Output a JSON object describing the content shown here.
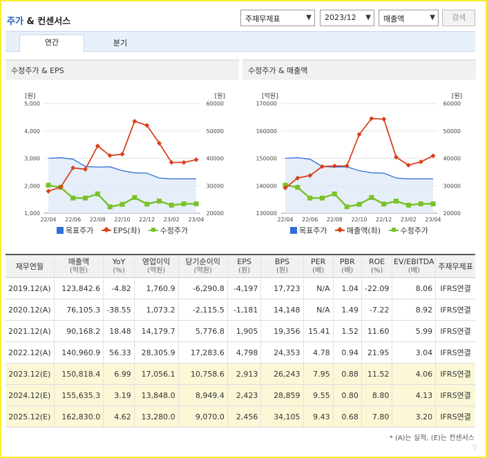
{
  "header": {
    "title_a": "주가",
    "title_b": " & 컨센서스",
    "select_type": "주재무제표",
    "select_period": "2023/12",
    "select_metric": "매출액",
    "search_label": "검색"
  },
  "tabs": [
    "연간",
    "분기"
  ],
  "colors": {
    "target": "#2f6fd6",
    "series": "#d9401a",
    "price": "#7ac22a"
  },
  "chart_left": {
    "title": "수정주가 & EPS",
    "left_unit": "[원]",
    "right_unit": "[원]",
    "left_ticks": [
      "5,000",
      "4,000",
      "3,000",
      "2,000",
      "1,000"
    ],
    "right_ticks": [
      "60000",
      "50000",
      "40000",
      "30000",
      "20000"
    ],
    "x_ticks": [
      "22/04",
      "22/06",
      "22/08",
      "22/10",
      "22/12",
      "23/02",
      "23/04"
    ],
    "legend": [
      "목표주가",
      "EPS(좌)",
      "수정주가"
    ]
  },
  "chart_right": {
    "title": "수정주가 & 매출액",
    "left_unit": "[억원]",
    "right_unit": "[원]",
    "left_ticks": [
      "170000",
      "160000",
      "150000",
      "140000",
      "130000"
    ],
    "right_ticks": [
      "60000",
      "50000",
      "40000",
      "30000",
      "20000"
    ],
    "x_ticks": [
      "22/04",
      "22/06",
      "22/08",
      "22/10",
      "22/12",
      "23/02",
      "23/04"
    ],
    "legend": [
      "목표주가",
      "매출액(좌)",
      "수정주가"
    ]
  },
  "chart_data": [
    {
      "type": "line",
      "title": "수정주가 & EPS",
      "ylabel_left": "[원]",
      "ylabel_right": "[원]",
      "ylim_left": [
        1000,
        5000
      ],
      "ylim_right": [
        20000,
        60000
      ],
      "x": [
        "22/04",
        "22/05",
        "22/06",
        "22/07",
        "22/08",
        "22/09",
        "22/10",
        "22/11",
        "22/12",
        "23/01",
        "23/02",
        "23/03",
        "23/04"
      ],
      "series": [
        {
          "name": "목표주가",
          "axis": "right",
          "values": [
            40000,
            40200,
            39700,
            37000,
            36800,
            36900,
            35500,
            34700,
            34600,
            32800,
            32500,
            32500,
            32500
          ]
        },
        {
          "name": "EPS(좌)",
          "axis": "left",
          "values": [
            1800,
            1950,
            2650,
            2600,
            3450,
            3100,
            3150,
            4350,
            4200,
            3550,
            2850,
            2850,
            2950
          ]
        },
        {
          "name": "수정주가",
          "axis": "right",
          "values": [
            30200,
            29400,
            25500,
            25500,
            27000,
            22300,
            23200,
            25700,
            23300,
            24400,
            22900,
            23400,
            23400
          ]
        }
      ]
    },
    {
      "type": "line",
      "title": "수정주가 & 매출액",
      "ylabel_left": "[억원]",
      "ylabel_right": "[원]",
      "ylim_left": [
        130000,
        170000
      ],
      "ylim_right": [
        20000,
        60000
      ],
      "x": [
        "22/04",
        "22/05",
        "22/06",
        "22/07",
        "22/08",
        "22/09",
        "22/10",
        "22/11",
        "22/12",
        "23/01",
        "23/02",
        "23/03",
        "23/04"
      ],
      "series": [
        {
          "name": "목표주가",
          "axis": "right",
          "values": [
            40000,
            40200,
            39700,
            37000,
            36800,
            36900,
            35500,
            34700,
            34600,
            32800,
            32500,
            32500,
            32500
          ]
        },
        {
          "name": "매출액(좌)",
          "axis": "left",
          "values": [
            139200,
            142800,
            143700,
            147000,
            147200,
            147200,
            158700,
            164500,
            164300,
            150400,
            147500,
            148700,
            150900
          ]
        },
        {
          "name": "수정주가",
          "axis": "right",
          "values": [
            30200,
            29400,
            25500,
            25500,
            27000,
            22300,
            23200,
            25700,
            23300,
            24400,
            22900,
            23400,
            23400
          ]
        }
      ]
    }
  ],
  "table": {
    "columns": [
      {
        "label": "재무연월",
        "sub": ""
      },
      {
        "label": "매출액",
        "sub": "(억원)"
      },
      {
        "label": "YoY",
        "sub": "(%)"
      },
      {
        "label": "영업이익",
        "sub": "(억원)"
      },
      {
        "label": "당기순이익",
        "sub": "(억원)"
      },
      {
        "label": "EPS",
        "sub": "(원)"
      },
      {
        "label": "BPS",
        "sub": "(원)"
      },
      {
        "label": "PER",
        "sub": "(배)"
      },
      {
        "label": "PBR",
        "sub": "(배)"
      },
      {
        "label": "ROE",
        "sub": "(%)"
      },
      {
        "label": "EV/EBITDA",
        "sub": "(배)"
      },
      {
        "label": "주재무제표",
        "sub": ""
      }
    ],
    "rows": [
      {
        "est": false,
        "cells": [
          "2019.12(A)",
          "123,842.6",
          "-4.82",
          "1,760.9",
          "-6,290.8",
          "-4,197",
          "17,723",
          "N/A",
          "1.04",
          "-22.09",
          "8.06",
          "IFRS연결"
        ]
      },
      {
        "est": false,
        "cells": [
          "2020.12(A)",
          "76,105.3",
          "-38.55",
          "1,073.2",
          "-2,115.5",
          "-1,181",
          "14,148",
          "N/A",
          "1.49",
          "-7.22",
          "8.92",
          "IFRS연결"
        ]
      },
      {
        "est": false,
        "cells": [
          "2021.12(A)",
          "90,168.2",
          "18.48",
          "14,179.7",
          "5,776.8",
          "1,905",
          "19,356",
          "15.41",
          "1.52",
          "11.60",
          "5.99",
          "IFRS연결"
        ]
      },
      {
        "est": false,
        "cells": [
          "2022.12(A)",
          "140,960.9",
          "56.33",
          "28,305.9",
          "17,283.6",
          "4,798",
          "24,353",
          "4.78",
          "0.94",
          "21.95",
          "3.04",
          "IFRS연결"
        ]
      },
      {
        "est": true,
        "cells": [
          "2023.12(E)",
          "150,818.4",
          "6.99",
          "17,056.1",
          "10,758.6",
          "2,913",
          "26,243",
          "7.95",
          "0.88",
          "11.52",
          "4.06",
          "IFRS연결"
        ]
      },
      {
        "est": true,
        "cells": [
          "2024.12(E)",
          "155,635.3",
          "3.19",
          "13,848.0",
          "8,949.4",
          "2,423",
          "28,859",
          "9.55",
          "0.80",
          "8.80",
          "4.13",
          "IFRS연결"
        ]
      },
      {
        "est": true,
        "cells": [
          "2025.12(E)",
          "162,830.0",
          "4.62",
          "13,280.0",
          "9,070.0",
          "2,456",
          "34,105",
          "9.43",
          "0.68",
          "7.80",
          "3.20",
          "IFRS연결"
        ]
      }
    ]
  },
  "footnote": "* (A)는 실적, (E)는 컨센서스"
}
